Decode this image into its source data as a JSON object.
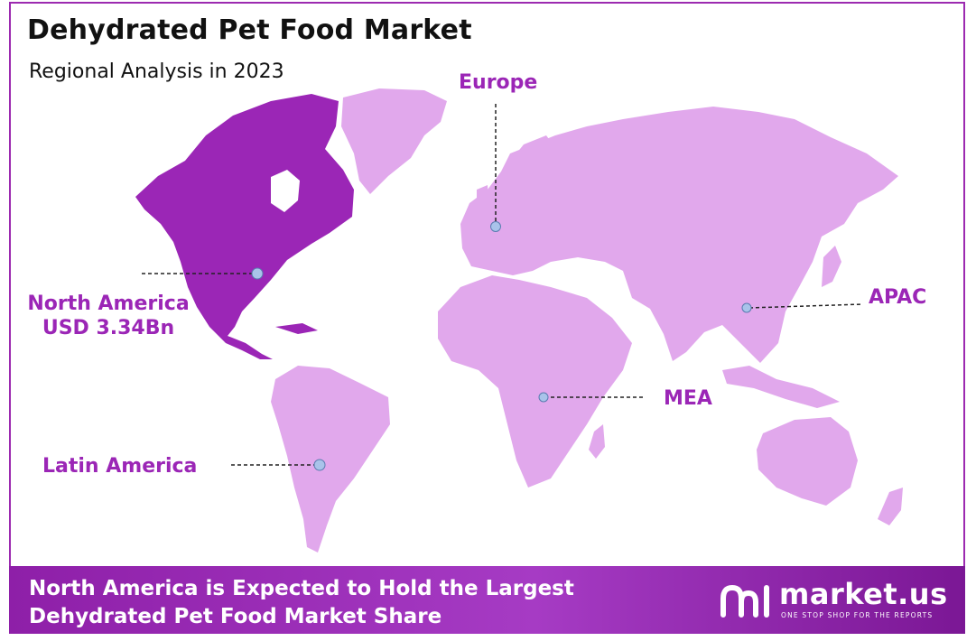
{
  "header": {
    "title": "Dehydrated Pet Food Market",
    "subtitle": "Regional Analysis in 2023"
  },
  "regions": {
    "north_america": {
      "label": "North America",
      "value": "USD 3.34Bn"
    },
    "europe": {
      "label": "Europe"
    },
    "apac": {
      "label": "APAC"
    },
    "mea": {
      "label": "MEA"
    },
    "latin_america": {
      "label": "Latin America"
    }
  },
  "footer": {
    "line1": "North America is Expected to Hold the Largest",
    "line2": "Dehydrated Pet Food Market Share"
  },
  "brand": {
    "name": "market.us",
    "tagline": "ONE STOP SHOP FOR THE REPORTS"
  },
  "colors": {
    "highlight_region": "#9b26b6",
    "other_regions": "#e1a8ec",
    "accent": "#9b26b6",
    "marker": "#a9c3ea"
  }
}
